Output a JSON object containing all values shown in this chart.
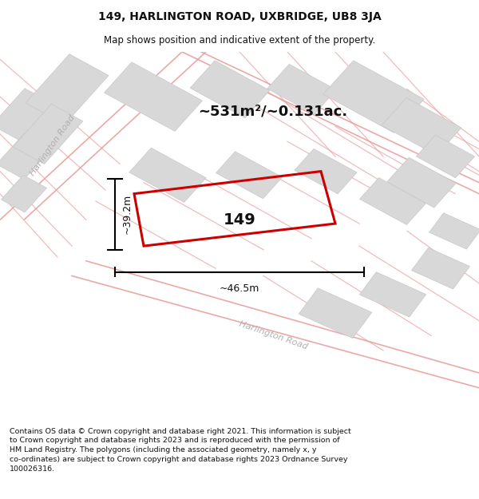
{
  "title_line1": "149, HARLINGTON ROAD, UXBRIDGE, UB8 3JA",
  "title_line2": "Map shows position and indicative extent of the property.",
  "area_text": "~531m²/~0.131ac.",
  "label_149": "149",
  "dim_vertical": "~39.2m",
  "dim_horizontal": "~46.5m",
  "road_label_top": "Harlington Road",
  "road_label_bottom": "Harlington Road",
  "footer_text": "Contains OS data © Crown copyright and database right 2021. This information is subject\nto Crown copyright and database rights 2023 and is reproduced with the permission of\nHM Land Registry. The polygons (including the associated geometry, namely x, y\nco-ordinates) are subject to Crown copyright and database rights 2023 Ordnance Survey\n100026316.",
  "map_bg": "#f2f2f2",
  "building_color": "#d8d8d8",
  "building_edge": "#c8c8c8",
  "road_line_color": "#e8a0a0",
  "plot_rect_color": "#cc0000",
  "title_color": "#111111",
  "footer_color": "#111111",
  "road_label_color": "#b0b0b0",
  "area_text_color": "#111111",
  "road_fill_color": "#ffffff"
}
